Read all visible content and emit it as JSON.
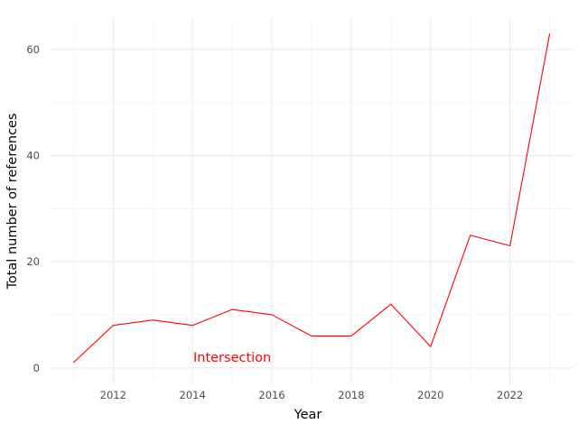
{
  "chart_data": {
    "type": "line",
    "title": "",
    "xlabel": "Year",
    "ylabel": "Total number of references",
    "x": [
      2011,
      2012,
      2013,
      2014,
      2015,
      2016,
      2017,
      2018,
      2019,
      2020,
      2021,
      2022,
      2023
    ],
    "series": [
      {
        "name": "",
        "color": "#ff0000",
        "values": [
          1,
          8,
          9,
          8,
          11,
          10,
          6,
          6,
          12,
          4,
          25,
          23,
          63
        ]
      }
    ],
    "xlim": [
      2010.4,
      2023.6
    ],
    "ylim": [
      -3.1,
      66.1
    ],
    "x_ticks": [
      2012,
      2014,
      2016,
      2018,
      2020,
      2022
    ],
    "x_tick_labels": [
      "2012",
      "2014",
      "2016",
      "2018",
      "2020",
      "2022"
    ],
    "y_ticks": [
      0,
      20,
      40,
      60
    ],
    "y_tick_labels": [
      "0",
      "20",
      "40",
      "60"
    ],
    "grid": true,
    "legend": "none",
    "annotations": [
      {
        "text": "Intersection",
        "x": 2015,
        "y": 2,
        "color": "#ff0000"
      }
    ]
  }
}
